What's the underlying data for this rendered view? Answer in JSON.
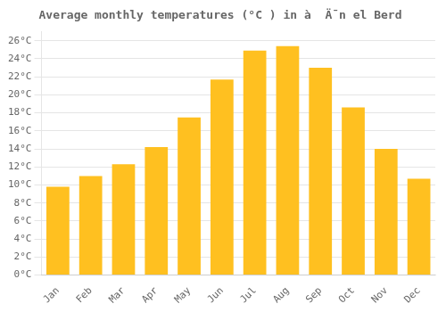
{
  "chart_data": {
    "type": "bar",
    "title": "Average monthly temperatures (°C ) in à  Ä¯n el Berd",
    "categories": [
      "Jan",
      "Feb",
      "Mar",
      "Apr",
      "May",
      "Jun",
      "Jul",
      "Aug",
      "Sep",
      "Oct",
      "Nov",
      "Dec"
    ],
    "values": [
      9.8,
      11.0,
      12.3,
      14.2,
      17.5,
      21.7,
      24.9,
      25.4,
      23.0,
      18.6,
      14.0,
      10.7
    ],
    "color": "#FFC020",
    "ylim": [
      0,
      27
    ],
    "yticks": [
      {
        "value": 0,
        "label": "0°C"
      },
      {
        "value": 2,
        "label": "2°C"
      },
      {
        "value": 4,
        "label": "4°C"
      },
      {
        "value": 6,
        "label": "6°C"
      },
      {
        "value": 8,
        "label": "8°C"
      },
      {
        "value": 10,
        "label": "10°C"
      },
      {
        "value": 12,
        "label": "12°C"
      },
      {
        "value": 14,
        "label": "14°C"
      },
      {
        "value": 16,
        "label": "16°C"
      },
      {
        "value": 18,
        "label": "18°C"
      },
      {
        "value": 20,
        "label": "20°C"
      },
      {
        "value": 22,
        "label": "22°C"
      },
      {
        "value": 24,
        "label": "24°C"
      },
      {
        "value": 26,
        "label": "26°C"
      }
    ],
    "grid": true
  }
}
